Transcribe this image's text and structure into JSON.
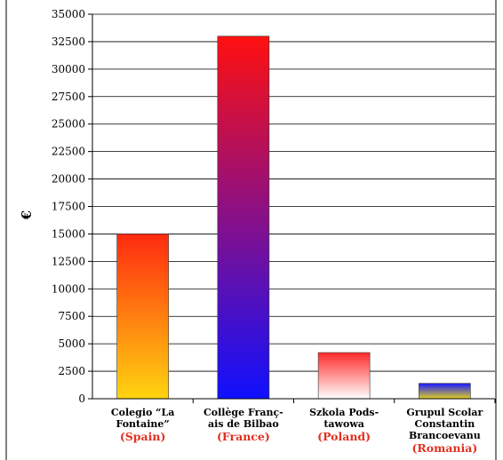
{
  "chart_data": {
    "type": "bar",
    "ylabel": "€",
    "ylim": [
      0,
      35000
    ],
    "ytick_step": 2500,
    "yticks": [
      "0",
      "2500",
      "5000",
      "7500",
      "10000",
      "12500",
      "15000",
      "17500",
      "20000",
      "22500",
      "25000",
      "27500",
      "30000",
      "32500",
      "35000"
    ],
    "grid": true,
    "categories": [
      {
        "name_lines": [
          "Colegio “La",
          "Fontaine”"
        ],
        "country": "(Spain)"
      },
      {
        "name_lines": [
          "Collège Franç-",
          "ais de Bilbao"
        ],
        "country": "(France)"
      },
      {
        "name_lines": [
          "Szkola Pods-",
          "tawowa"
        ],
        "country": "(Poland)"
      },
      {
        "name_lines": [
          "Grupul Scolar",
          "Constantin",
          "Brancoevanu"
        ],
        "country": "(Romania)"
      }
    ],
    "values": [
      15000,
      33000,
      4200,
      1400
    ],
    "bar_gradients": [
      {
        "top": "#ff2a10",
        "bottom": "#ffd410"
      },
      {
        "top": "#ff1010",
        "bottom": "#1010ff"
      },
      {
        "top": "#ff2a2a",
        "bottom": "#ffffff"
      },
      {
        "top": "#1a1aff",
        "bottom": "#e0d020"
      }
    ],
    "country_color": "#e03020"
  }
}
